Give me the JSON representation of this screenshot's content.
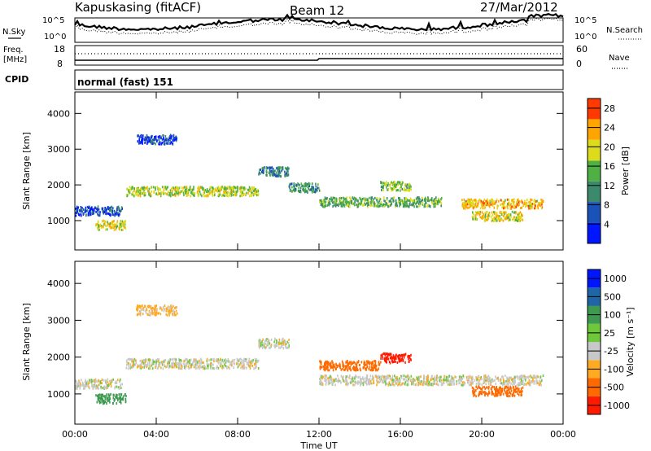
{
  "header": {
    "station": "Kapuskasing (fitACF)",
    "beam": "Beam 12",
    "date": "27/Mar/2012"
  },
  "noise_panel": {
    "left_label": "N.Sky",
    "right_label": "N.Search",
    "left_ticks": [
      "10^5",
      "10^0"
    ],
    "right_ticks": [
      "10^5",
      "10^0"
    ]
  },
  "freq_panel": {
    "left_label_line1": "Freq.",
    "left_label_line2": "[MHz]",
    "left_ticks": [
      "18",
      "8"
    ],
    "right_label": "Nave",
    "right_ticks": [
      "60",
      "0"
    ]
  },
  "cpid": {
    "label": "CPID",
    "value": "normal (fast) 151"
  },
  "chart_data": [
    {
      "type": "heatmap",
      "name": "power",
      "ylabel": "Slant Range [km]",
      "ylim": [
        180,
        4600
      ],
      "yticks": [
        1000,
        2000,
        3000,
        4000
      ],
      "colorbar_label": "Power [dB]",
      "colorbar_ticks": [
        "4",
        "8",
        "12",
        "16",
        "20",
        "24",
        "28"
      ],
      "colorbar_range": [
        0,
        30
      ],
      "colors": [
        "#0016ff",
        "#1a52b8",
        "#3b8a6e",
        "#4fb043",
        "#dcdc1a",
        "#ffa500",
        "#ff3a00"
      ],
      "scatter_bands": [
        {
          "t0": 0.0,
          "t1": 2.3,
          "range_km": 1300,
          "power_db": 6
        },
        {
          "t0": 1.0,
          "t1": 2.5,
          "range_km": 900,
          "power_db": 20
        },
        {
          "t0": 2.5,
          "t1": 9.0,
          "range_km": 1850,
          "power_db": 18
        },
        {
          "t0": 9.0,
          "t1": 10.5,
          "range_km": 2400,
          "power_db": 10
        },
        {
          "t0": 10.5,
          "t1": 12.0,
          "range_km": 1950,
          "power_db": 12
        },
        {
          "t0": 12.0,
          "t1": 18.0,
          "range_km": 1550,
          "power_db": 14
        },
        {
          "t0": 15.0,
          "t1": 16.5,
          "range_km": 2000,
          "power_db": 16
        },
        {
          "t0": 19.0,
          "t1": 23.0,
          "range_km": 1500,
          "power_db": 22
        },
        {
          "t0": 19.5,
          "t1": 22.0,
          "range_km": 1150,
          "power_db": 20
        },
        {
          "t0": 3.0,
          "t1": 5.0,
          "range_km": 3300,
          "power_db": 5
        }
      ]
    },
    {
      "type": "heatmap",
      "name": "velocity",
      "ylabel": "Slant Range [km]",
      "ylim": [
        180,
        4600
      ],
      "yticks": [
        1000,
        2000,
        3000,
        4000
      ],
      "colorbar_label": "Velocity [m s⁻¹]",
      "colorbar_ticks": [
        "1000",
        "500",
        "100",
        "25",
        "-25",
        "-100",
        "-500",
        "-1000"
      ],
      "colors": [
        "#0016ff",
        "#1f66a6",
        "#3e9a50",
        "#6ec83a",
        "#c8c8c8",
        "#ffaa22",
        "#ff6a00",
        "#ff1a00"
      ],
      "scatter_bands": [
        {
          "t0": 0.0,
          "t1": 2.3,
          "range_km": 1300,
          "velocity": 0
        },
        {
          "t0": 1.0,
          "t1": 2.5,
          "range_km": 900,
          "velocity": 150
        },
        {
          "t0": 2.5,
          "t1": 9.0,
          "range_km": 1850,
          "velocity": 0
        },
        {
          "t0": 9.0,
          "t1": 10.5,
          "range_km": 2400,
          "velocity": 0
        },
        {
          "t0": 12.0,
          "t1": 15.0,
          "range_km": 1800,
          "velocity": -300
        },
        {
          "t0": 15.0,
          "t1": 16.5,
          "range_km": 2000,
          "velocity": -600
        },
        {
          "t0": 12.0,
          "t1": 23.0,
          "range_km": 1400,
          "velocity": 0
        },
        {
          "t0": 19.5,
          "t1": 22.0,
          "range_km": 1100,
          "velocity": -200
        },
        {
          "t0": 3.0,
          "t1": 5.0,
          "range_km": 3300,
          "velocity": -50
        }
      ]
    }
  ],
  "x_axis": {
    "label": "Time UT",
    "ticks": [
      "00:00",
      "04:00",
      "08:00",
      "12:00",
      "16:00",
      "20:00",
      "00:00"
    ],
    "range_hours": [
      0,
      24
    ]
  }
}
